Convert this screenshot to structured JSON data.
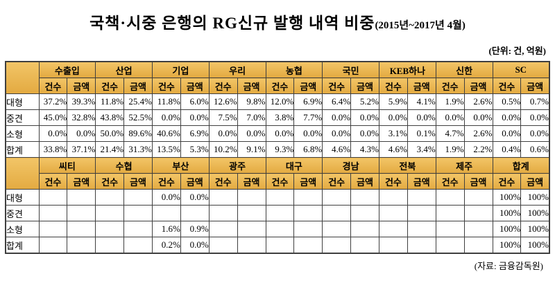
{
  "chart_data": {
    "type": "table",
    "title": "국책·시중 은행의 RG신규 발행 내역 비중",
    "title_suffix": "(2015년~2017년 4월)",
    "unit_note": "(단위: 건, 억원)",
    "source_note": "(자료: 금융감독원)",
    "subcolumns": [
      "건수",
      "금액"
    ],
    "row_labels": [
      "대형",
      "중견",
      "소형",
      "합계"
    ],
    "sections": [
      {
        "banks": [
          "수출입",
          "산업",
          "기업",
          "우리",
          "농협",
          "국민",
          "KEB하나",
          "신한",
          "SC"
        ],
        "rows": [
          {
            "label": "대형",
            "values": [
              "37.2%",
              "39.3%",
              "11.8%",
              "25.4%",
              "11.8%",
              "6.0%",
              "12.6%",
              "9.8%",
              "12.0%",
              "6.9%",
              "6.4%",
              "5.2%",
              "5.9%",
              "4.1%",
              "1.9%",
              "2.6%",
              "0.5%",
              "0.7%"
            ]
          },
          {
            "label": "중견",
            "values": [
              "45.0%",
              "32.8%",
              "43.8%",
              "52.5%",
              "0.0%",
              "0.0%",
              "7.5%",
              "7.0%",
              "3.8%",
              "7.7%",
              "0.0%",
              "0.0%",
              "0.0%",
              "0.0%",
              "0.0%",
              "0.0%",
              "0.0%",
              "0.0%"
            ]
          },
          {
            "label": "소형",
            "values": [
              "0.0%",
              "0.0%",
              "50.0%",
              "89.6%",
              "40.6%",
              "6.9%",
              "0.0%",
              "0.0%",
              "0.0%",
              "0.0%",
              "0.0%",
              "0.0%",
              "3.1%",
              "0.1%",
              "4.7%",
              "2.6%",
              "0.0%",
              "0.0%"
            ]
          },
          {
            "label": "합계",
            "values": [
              "33.8%",
              "37.1%",
              "21.4%",
              "31.3%",
              "13.5%",
              "5.3%",
              "10.2%",
              "9.1%",
              "9.3%",
              "6.8%",
              "4.6%",
              "4.3%",
              "4.6%",
              "3.4%",
              "1.9%",
              "2.2%",
              "0.4%",
              "0.6%"
            ]
          }
        ]
      },
      {
        "banks": [
          "씨티",
          "수협",
          "부산",
          "광주",
          "대구",
          "경남",
          "전북",
          "제주",
          "합계"
        ],
        "rows": [
          {
            "label": "대형",
            "values": [
              "",
              "",
              "",
              "",
              "0.0%",
              "0.0%",
              "",
              "",
              "",
              "",
              "",
              "",
              "",
              "",
              "",
              "",
              "100%",
              "100%"
            ]
          },
          {
            "label": "중견",
            "values": [
              "",
              "",
              "",
              "",
              "",
              "",
              "",
              "",
              "",
              "",
              "",
              "",
              "",
              "",
              "",
              "",
              "100%",
              "100%"
            ]
          },
          {
            "label": "소형",
            "values": [
              "",
              "",
              "",
              "",
              "1.6%",
              "0.9%",
              "",
              "",
              "",
              "",
              "",
              "",
              "",
              "",
              "",
              "",
              "100%",
              "100%"
            ]
          },
          {
            "label": "합계",
            "values": [
              "",
              "",
              "",
              "",
              "0.2%",
              "0.0%",
              "",
              "",
              "",
              "",
              "",
              "",
              "",
              "",
              "",
              "",
              "100%",
              "100%"
            ]
          }
        ]
      }
    ]
  },
  "colors": {
    "header_gradient_top": "#F2C567",
    "header_gradient_bottom": "#E3AA41",
    "border": "#3F3F3F",
    "background": "#FFFFFF"
  }
}
